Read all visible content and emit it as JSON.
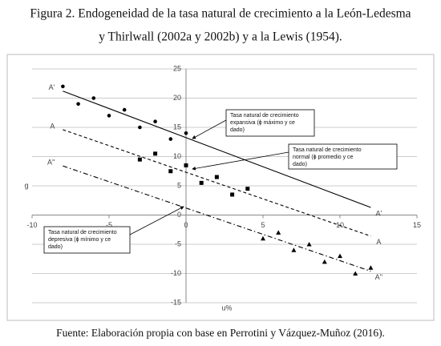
{
  "chart_data": {
    "type": "scatter",
    "title": [
      "Figura 2. Endogeneidad de la tasa natural de crecimiento a la León-Ledesma",
      "y Thirlwall (2002a y 2002b) y a la Lewis (1954)."
    ],
    "source": "Fuente: Elaboración propia con base en Perrotini y Vázquez-Muñoz (2016).",
    "x_label": "u%",
    "y_label": "g",
    "xlim": [
      -10,
      15
    ],
    "xticks": [
      -10,
      -5,
      0,
      5,
      10,
      15
    ],
    "ylim": [
      -15,
      25
    ],
    "yticks": [
      -15,
      -10,
      -5,
      0,
      5,
      10,
      15,
      20,
      25
    ],
    "grid": true,
    "series": [
      {
        "marker": "circle",
        "color": "#000000",
        "x": [
          -8,
          -7,
          -6,
          -5,
          -4,
          -3,
          -2,
          -1,
          0
        ],
        "values": [
          22,
          19,
          20,
          17,
          18,
          15,
          16,
          13,
          14
        ]
      },
      {
        "marker": "square",
        "color": "#000000",
        "x": [
          -3,
          -2,
          -1,
          0,
          1,
          2,
          3,
          4
        ],
        "values": [
          9.5,
          10.5,
          7.5,
          8.5,
          5.5,
          6.5,
          3.5,
          4.5
        ]
      },
      {
        "marker": "triangle",
        "color": "#000000",
        "x": [
          5,
          6,
          7,
          8,
          9,
          10,
          11,
          12
        ],
        "values": [
          -4,
          -3,
          -6,
          -5,
          -8,
          -7,
          -10,
          -9
        ]
      }
    ],
    "lines": [
      {
        "name": "A'",
        "dash": "solid",
        "x": [
          -8,
          12
        ],
        "values": [
          21.2,
          1.3
        ]
      },
      {
        "name": "A",
        "dash": "dashed",
        "x": [
          -8,
          12
        ],
        "values": [
          14.6,
          -3.6
        ]
      },
      {
        "name": "A''",
        "dash": "dashdot",
        "x": [
          -8,
          12
        ],
        "values": [
          8.4,
          -9.6
        ]
      }
    ],
    "annotations": [
      {
        "text": [
          "Tasa natural de crecimiento",
          "expansiva (ɸ máximo y ce",
          "dado)"
        ]
      },
      {
        "text": [
          "Tasa natural de crecimiento",
          "normal (ɸ promedio y ce",
          "dado)"
        ]
      },
      {
        "text": [
          "Tasa natural de crecimiento",
          "depresiva (ɸ mínimo y ce",
          "dado)"
        ]
      }
    ]
  }
}
